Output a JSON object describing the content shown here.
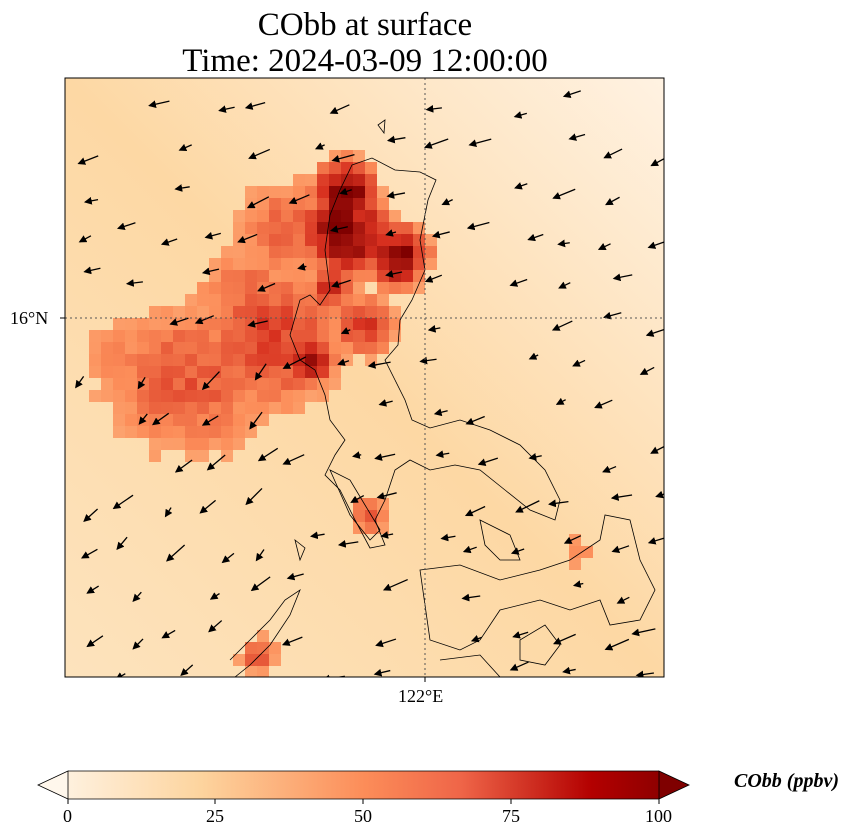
{
  "chart_data": {
    "type": "heatmap",
    "title": "CObb at surface",
    "subtitle": "Time: 2024-03-09 12:00:00",
    "field": "CObb",
    "overlay": "wind vectors",
    "lat_label": "16°N",
    "lon_label": "122°E",
    "colorbar": {
      "label": "CObb (ppbv)",
      "range": [
        0,
        100
      ],
      "ticks": [
        "0",
        "25",
        "50",
        "75",
        "100"
      ],
      "extend": "both",
      "colormap": [
        "#fff7ec",
        "#fdd49e",
        "#fc8d59",
        "#d7301f",
        "#7f0000"
      ]
    },
    "background_level_ppbv": 20,
    "max_level_ppbv": 100
  }
}
